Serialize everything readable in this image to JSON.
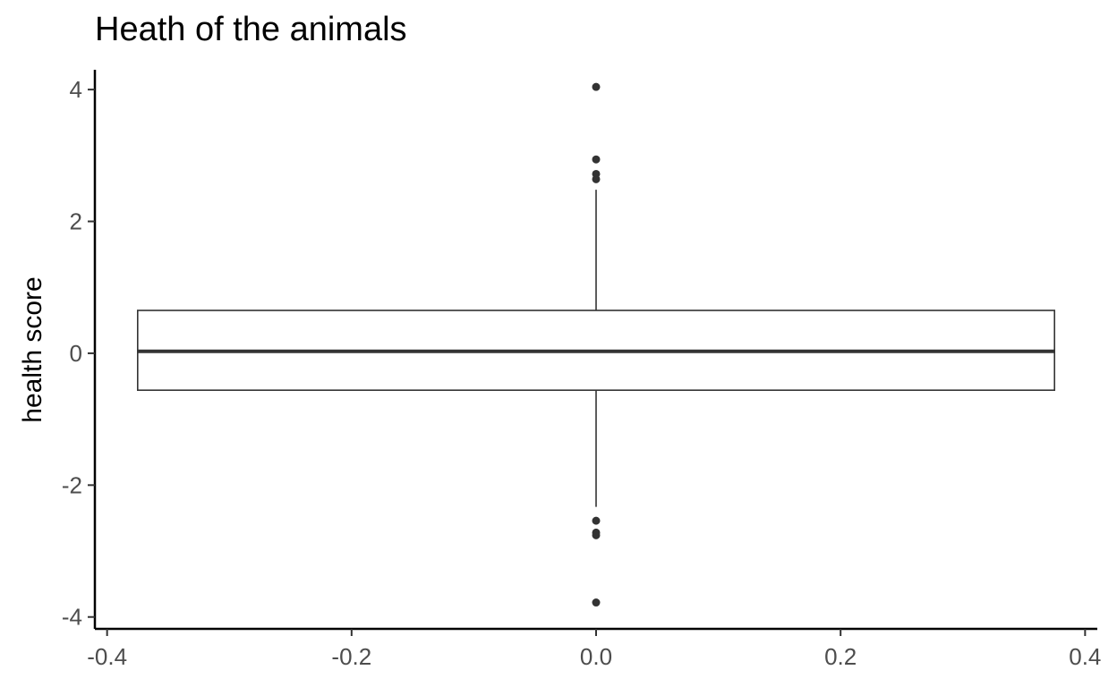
{
  "chart_data": {
    "type": "boxplot",
    "title": "Heath of the animals",
    "xlabel": "",
    "ylabel": "health score",
    "xlim": [
      -0.41,
      0.41
    ],
    "ylim": [
      -4.18,
      4.3
    ],
    "x_ticks": [
      -0.4,
      -0.2,
      0.0,
      0.2,
      0.4
    ],
    "x_tick_labels": [
      "-0.4",
      "-0.2",
      "0.0",
      "0.2",
      "0.4"
    ],
    "y_ticks": [
      -4,
      -2,
      0,
      2,
      4
    ],
    "y_tick_labels": [
      "-4",
      "-2",
      "0",
      "2",
      "4"
    ],
    "grid": false,
    "box": {
      "x_center": 0.0,
      "x_min": -0.375,
      "x_max": 0.375,
      "q1": -0.56,
      "median": 0.03,
      "q3": 0.65,
      "whisker_low": -2.33,
      "whisker_high": 2.48
    },
    "outliers": [
      4.04,
      2.94,
      2.72,
      2.64,
      -2.54,
      -2.72,
      -2.76,
      -3.78
    ],
    "colors": {
      "box_fill": "#ffffff",
      "box_stroke": "#333333",
      "median": "#333333",
      "outlier": "#333333",
      "axis": "#000000",
      "tick_label": "#4d4d4d"
    }
  }
}
